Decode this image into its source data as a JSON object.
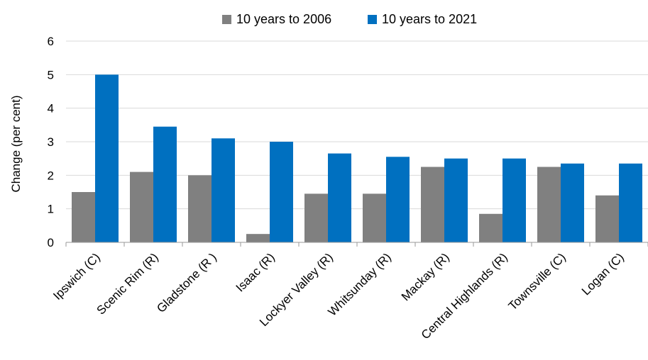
{
  "chart_data": {
    "type": "bar",
    "ylabel": "Change (per cent)",
    "ylim": [
      0,
      6
    ],
    "yticks": [
      0,
      1,
      2,
      3,
      4,
      5,
      6
    ],
    "grid": true,
    "legend_position": "top-center",
    "categories": [
      "Ipswich (C)",
      "Scenic Rim (R)",
      "Gladstone (R )",
      "Isaac (R)",
      "Lockyer Valley (R)",
      "Whitsunday (R)",
      "Mackay (R)",
      "Central Highlands (R)",
      "Townsville (C)",
      "Logan (C)"
    ],
    "series": [
      {
        "name": "10 years to 2006",
        "color": "#808080",
        "values": [
          1.5,
          2.1,
          2.0,
          0.25,
          1.45,
          1.45,
          2.25,
          0.85,
          2.25,
          1.4
        ]
      },
      {
        "name": "10 years to 2021",
        "color": "#0070c0",
        "values": [
          5.0,
          3.45,
          3.1,
          3.0,
          2.65,
          2.55,
          2.5,
          2.5,
          2.35,
          2.35
        ]
      }
    ]
  }
}
